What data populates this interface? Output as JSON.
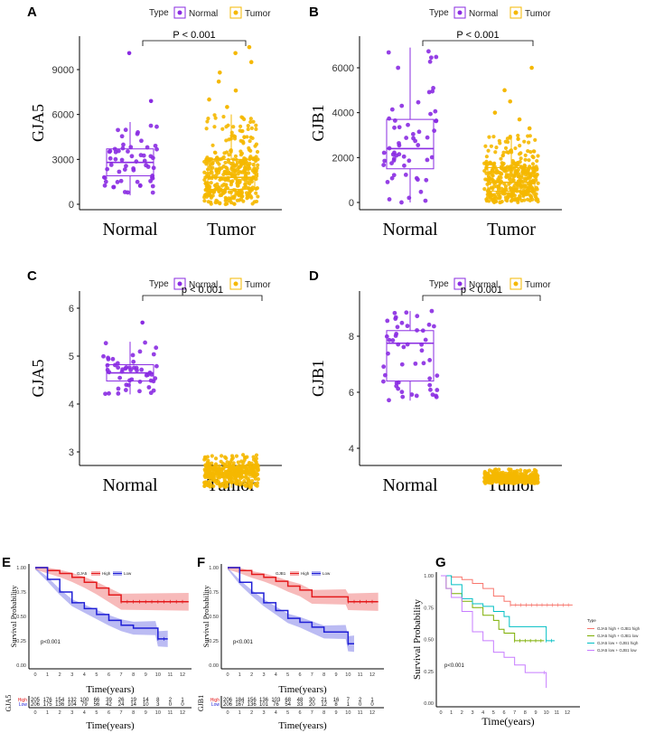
{
  "chart_data": [
    {
      "panel": "A",
      "type": "box",
      "ylabel": "GJA5",
      "categories": [
        "Normal",
        "Tumor"
      ],
      "legend_title": "Type",
      "legend": [
        "Normal",
        "Tumor"
      ],
      "annotation": "P < 0.001",
      "ylim": [
        0,
        10500
      ],
      "yticks": [
        0,
        3000,
        6000,
        9000
      ],
      "boxes": [
        {
          "q1": 1900,
          "median": 2800,
          "q3": 3700,
          "whisk_lo": 600,
          "whisk_hi": 5500,
          "outliers": [
            6900,
            10100
          ]
        },
        {
          "q1": 1000,
          "median": 1800,
          "q3": 3000,
          "whisk_lo": 0,
          "whisk_hi": 6000,
          "outliers": [
            6500,
            7000,
            7600,
            8200,
            8800,
            9500,
            10100,
            10500
          ]
        }
      ]
    },
    {
      "panel": "B",
      "type": "box",
      "ylabel": "GJB1",
      "categories": [
        "Normal",
        "Tumor"
      ],
      "legend_title": "Type",
      "legend": [
        "Normal",
        "Tumor"
      ],
      "annotation": "P < 0.001",
      "ylim": [
        0,
        7000
      ],
      "yticks": [
        0,
        2000,
        4000,
        6000
      ],
      "boxes": [
        {
          "q1": 1500,
          "median": 2400,
          "q3": 3700,
          "whisk_lo": 0,
          "whisk_hi": 6900,
          "outliers": []
        },
        {
          "q1": 500,
          "median": 900,
          "q3": 1550,
          "whisk_lo": 0,
          "whisk_hi": 3000,
          "outliers": [
            3300,
            3700,
            4000,
            4500,
            5000,
            6000
          ]
        }
      ]
    },
    {
      "panel": "C",
      "type": "box",
      "ylabel": "GJA5",
      "categories": [
        "Normal",
        "Tumor"
      ],
      "legend_title": "Type",
      "legend": [
        "Normal",
        "Tumor"
      ],
      "annotation": "p < 0.001",
      "ylim": [
        2.2,
        6.05
      ],
      "yticks": [
        3,
        4,
        5,
        6
      ],
      "boxes": [
        {
          "q1": 4.48,
          "median": 4.65,
          "q3": 4.82,
          "whisk_lo": 4.2,
          "whisk_hi": 5.3,
          "outliers": [
            5.7
          ]
        },
        {
          "q1": 2.47,
          "median": 2.55,
          "q3": 2.67,
          "whisk_lo": 2.25,
          "whisk_hi": 2.95,
          "outliers": []
        }
      ]
    },
    {
      "panel": "D",
      "type": "box",
      "ylabel": "GJB1",
      "categories": [
        "Normal",
        "Tumor"
      ],
      "legend_title": "Type",
      "legend": [
        "Normal",
        "Tumor"
      ],
      "annotation": "p < 0.001",
      "ylim": [
        2.6,
        9.2
      ],
      "yticks": [
        4,
        6,
        8
      ],
      "boxes": [
        {
          "q1": 6.4,
          "median": 7.75,
          "q3": 8.2,
          "whisk_lo": 5.7,
          "whisk_hi": 8.9,
          "outliers": []
        },
        {
          "q1": 2.87,
          "median": 2.95,
          "q3": 3.02,
          "whisk_lo": 2.75,
          "whisk_hi": 3.25,
          "outliers": []
        }
      ]
    },
    {
      "panel": "E",
      "type": "line",
      "subtype": "kaplan-meier",
      "xlabel": "Time(years)",
      "ylabel": "Survival Probability",
      "legend_title": "GJA5",
      "pvalue": "p<0.001",
      "xticks": [
        0,
        1,
        2,
        3,
        4,
        5,
        6,
        7,
        8,
        9,
        10,
        11,
        12
      ],
      "yticks": [
        "0.00",
        "0.25",
        "0.50",
        "0.75",
        "1.00"
      ],
      "series": [
        {
          "name": "High",
          "color": "#e41a1c",
          "points": [
            [
              0,
              1
            ],
            [
              1,
              0.97
            ],
            [
              2,
              0.94
            ],
            [
              3,
              0.9
            ],
            [
              4,
              0.85
            ],
            [
              5,
              0.79
            ],
            [
              6,
              0.72
            ],
            [
              7,
              0.65
            ],
            [
              12.5,
              0.65
            ]
          ],
          "ci": 0.1,
          "at_risk": [
            205,
            176,
            154,
            132,
            100,
            66,
            39,
            26,
            19,
            14,
            8,
            2,
            1
          ]
        },
        {
          "name": "Low",
          "color": "#1f1fd6",
          "points": [
            [
              0,
              1
            ],
            [
              1,
              0.88
            ],
            [
              2,
              0.75
            ],
            [
              3,
              0.64
            ],
            [
              4,
              0.58
            ],
            [
              5,
              0.52
            ],
            [
              6,
              0.46
            ],
            [
              7,
              0.41
            ],
            [
              8,
              0.38
            ],
            [
              9.8,
              0.38
            ],
            [
              10,
              0.27
            ],
            [
              10.8,
              0.27
            ]
          ],
          "ci": 0.09,
          "at_risk": [
            206,
            175,
            136,
            104,
            79,
            56,
            42,
            24,
            14,
            10,
            3,
            0,
            0
          ]
        }
      ],
      "risk_table_label": "GJA5",
      "risk_xlabel": "Time(years)"
    },
    {
      "panel": "F",
      "type": "line",
      "subtype": "kaplan-meier",
      "xlabel": "Time(years)",
      "ylabel": "Survival Probability",
      "legend_title": "GJB1",
      "pvalue": "p<0.001",
      "xticks": [
        0,
        1,
        2,
        3,
        4,
        5,
        6,
        7,
        8,
        9,
        10,
        11,
        12
      ],
      "yticks": [
        "0.00",
        "0.25",
        "0.50",
        "0.75",
        "1.00"
      ],
      "series": [
        {
          "name": "High",
          "color": "#e41a1c",
          "points": [
            [
              0,
              1
            ],
            [
              1,
              0.97
            ],
            [
              2,
              0.93
            ],
            [
              3,
              0.9
            ],
            [
              4,
              0.86
            ],
            [
              5,
              0.81
            ],
            [
              6,
              0.77
            ],
            [
              7,
              0.7
            ],
            [
              9.8,
              0.7
            ],
            [
              10,
              0.65
            ],
            [
              12.5,
              0.65
            ]
          ],
          "ci": 0.1,
          "at_risk": [
            206,
            184,
            156,
            136,
            103,
            68,
            48,
            30,
            21,
            16,
            7,
            2,
            1
          ]
        },
        {
          "name": "Low",
          "color": "#1f1fd6",
          "points": [
            [
              0,
              1
            ],
            [
              1,
              0.85
            ],
            [
              2,
              0.74
            ],
            [
              3,
              0.64
            ],
            [
              4,
              0.56
            ],
            [
              5,
              0.48
            ],
            [
              6,
              0.44
            ],
            [
              7,
              0.39
            ],
            [
              8,
              0.34
            ],
            [
              9.8,
              0.34
            ],
            [
              10,
              0.22
            ],
            [
              10.5,
              0.22
            ]
          ],
          "ci": 0.09,
          "at_risk": [
            206,
            167,
            136,
            101,
            76,
            54,
            33,
            20,
            12,
            8,
            1,
            0,
            0
          ]
        }
      ],
      "risk_table_label": "GJB1",
      "risk_xlabel": "Time(years)"
    },
    {
      "panel": "G",
      "type": "line",
      "subtype": "kaplan-meier",
      "xlabel": "Time(years)",
      "ylabel": "Survival Probability",
      "legend_title": "Type",
      "pvalue": "p<0.001",
      "xticks": [
        0,
        1,
        2,
        3,
        4,
        5,
        6,
        7,
        8,
        9,
        10,
        11,
        12
      ],
      "yticks": [
        "0.00",
        "0.25",
        "0.50",
        "0.75",
        "1.00"
      ],
      "series": [
        {
          "name": "GJA5 high + GJB1 high",
          "color": "#f8766d",
          "points": [
            [
              0,
              1
            ],
            [
              1,
              0.99
            ],
            [
              2,
              0.97
            ],
            [
              3,
              0.94
            ],
            [
              4,
              0.9
            ],
            [
              5,
              0.84
            ],
            [
              6,
              0.8
            ],
            [
              6.6,
              0.77
            ],
            [
              12.5,
              0.77
            ]
          ]
        },
        {
          "name": "GJA5 high + GJB1 low",
          "color": "#7cae00",
          "points": [
            [
              0,
              1
            ],
            [
              0.5,
              0.9
            ],
            [
              1,
              0.86
            ],
            [
              2,
              0.8
            ],
            [
              3,
              0.75
            ],
            [
              4,
              0.69
            ],
            [
              5,
              0.65
            ],
            [
              5.5,
              0.58
            ],
            [
              6,
              0.55
            ],
            [
              7,
              0.49
            ],
            [
              9.8,
              0.49
            ]
          ]
        },
        {
          "name": "GJA5 low + GJB1 high",
          "color": "#00bfc4",
          "points": [
            [
              0,
              1
            ],
            [
              1,
              0.93
            ],
            [
              2,
              0.82
            ],
            [
              3,
              0.78
            ],
            [
              4,
              0.76
            ],
            [
              5,
              0.72
            ],
            [
              6,
              0.68
            ],
            [
              6.5,
              0.6
            ],
            [
              9.8,
              0.6
            ],
            [
              10,
              0.49
            ],
            [
              10.8,
              0.49
            ]
          ]
        },
        {
          "name": "GJA5 low + GJB1 low",
          "color": "#c77cff",
          "points": [
            [
              0,
              1
            ],
            [
              0.5,
              0.9
            ],
            [
              1,
              0.83
            ],
            [
              2,
              0.72
            ],
            [
              3,
              0.56
            ],
            [
              4,
              0.49
            ],
            [
              5,
              0.4
            ],
            [
              6,
              0.36
            ],
            [
              7,
              0.3
            ],
            [
              8,
              0.24
            ],
            [
              9.8,
              0.24
            ],
            [
              10,
              0.12
            ]
          ]
        }
      ]
    }
  ]
}
